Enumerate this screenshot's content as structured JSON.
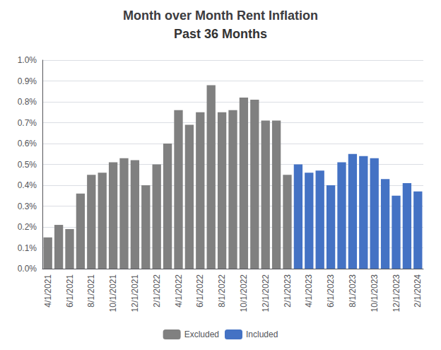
{
  "chart_data": {
    "type": "bar",
    "title": "Month over Month Rent Inflation",
    "subtitle": "Past 36 Months",
    "categories": [
      "4/1/2021",
      null,
      "6/1/2021",
      null,
      "8/1/2021",
      null,
      "10/1/2021",
      null,
      "12/1/2021",
      null,
      "2/1/2022",
      null,
      "4/1/2022",
      null,
      "6/1/2022",
      null,
      "8/1/2022",
      null,
      "10/1/2022",
      null,
      "12/1/2022",
      null,
      "2/1/2023",
      null,
      "4/1/2023",
      null,
      "6/1/2023",
      null,
      "8/1/2023",
      null,
      "10/1/2023",
      null,
      "12/1/2023",
      null,
      "2/1/2024"
    ],
    "series": [
      {
        "name": "Excluded",
        "color": "#808080",
        "values": [
          0.0015,
          0.0021,
          0.0019,
          0.0036,
          0.0045,
          0.0046,
          0.0051,
          0.0053,
          0.0052,
          0.004,
          0.005,
          0.006,
          0.0076,
          0.0069,
          0.0075,
          0.0088,
          0.0075,
          0.0076,
          0.0082,
          0.0081,
          0.0071,
          0.0071,
          0.0045,
          null,
          null,
          null,
          null,
          null,
          null,
          null,
          null,
          null,
          null,
          null,
          null
        ]
      },
      {
        "name": "Included",
        "color": "#4472C4",
        "values": [
          null,
          null,
          null,
          null,
          null,
          null,
          null,
          null,
          null,
          null,
          null,
          null,
          null,
          null,
          null,
          null,
          null,
          null,
          null,
          null,
          null,
          null,
          null,
          0.005,
          0.0046,
          0.0047,
          0.004,
          0.0051,
          0.0055,
          0.0054,
          0.0053,
          0.0043,
          0.0035,
          0.0041,
          0.0037
        ]
      }
    ],
    "ylim": [
      0,
      0.01
    ],
    "yticks": [
      {
        "value": 0.0,
        "label": "0.0%"
      },
      {
        "value": 0.001,
        "label": "0.1%"
      },
      {
        "value": 0.002,
        "label": "0.2%"
      },
      {
        "value": 0.003,
        "label": "0.3%"
      },
      {
        "value": 0.004,
        "label": "0.4%"
      },
      {
        "value": 0.005,
        "label": "0.5%"
      },
      {
        "value": 0.006,
        "label": "0.6%"
      },
      {
        "value": 0.007,
        "label": "0.7%"
      },
      {
        "value": 0.008,
        "label": "0.8%"
      },
      {
        "value": 0.009,
        "label": "0.9%"
      },
      {
        "value": 0.01,
        "label": "1.0%"
      }
    ],
    "grid": true,
    "legend": "bottom"
  }
}
